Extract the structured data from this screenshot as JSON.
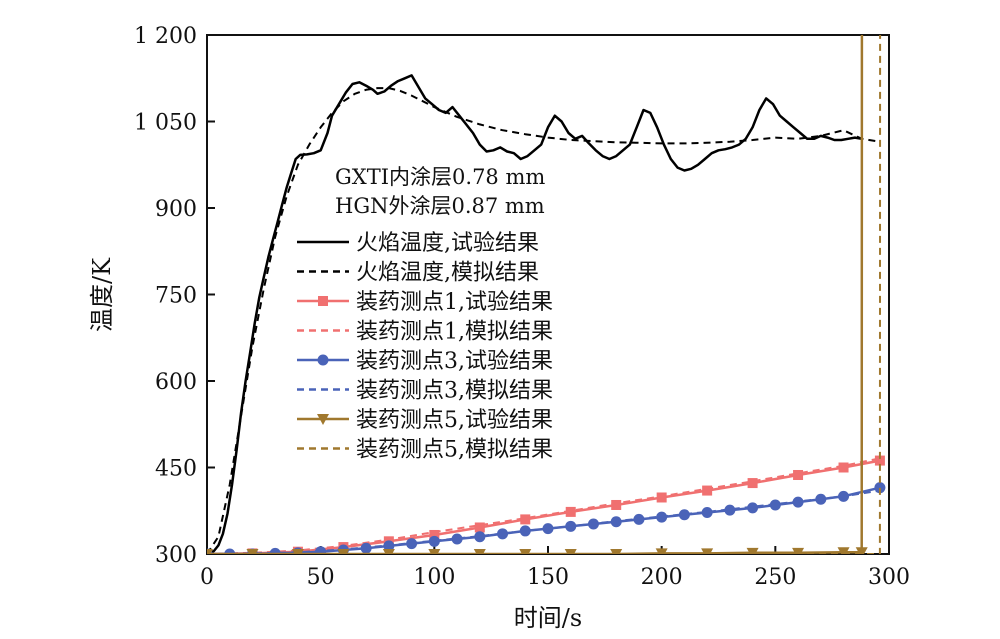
{
  "chart_data": {
    "type": "line",
    "xlabel": "时间/s",
    "ylabel": "温度/K",
    "xlim": [
      0,
      300
    ],
    "ylim": [
      300,
      1200
    ],
    "x_ticks": [
      {
        "value": 0,
        "label": "0"
      },
      {
        "value": 50,
        "label": "50"
      },
      {
        "value": 100,
        "label": "100"
      },
      {
        "value": 150,
        "label": "150"
      },
      {
        "value": 200,
        "label": "200"
      },
      {
        "value": 250,
        "label": "250"
      },
      {
        "value": 300,
        "label": "300"
      }
    ],
    "y_ticks": [
      {
        "value": 300,
        "label": "300"
      },
      {
        "value": 450,
        "label": "450"
      },
      {
        "value": 600,
        "label": "600"
      },
      {
        "value": 750,
        "label": "750"
      },
      {
        "value": 900,
        "label": "900"
      },
      {
        "value": 1050,
        "label": "1 050"
      },
      {
        "value": 1200,
        "label": "1 200"
      }
    ],
    "annotations": [
      "GXTI内涂层0.78 mm",
      "HGN外涂层0.87 mm"
    ],
    "legend_position": "center-left",
    "series": [
      {
        "name": "火焰温度,试验结果",
        "color": "#000000",
        "dash": "solid",
        "marker": "none",
        "x": [
          0,
          3,
          5,
          7,
          9,
          11,
          13,
          15,
          17,
          19,
          21,
          23,
          25,
          27,
          29,
          31,
          33,
          35,
          37,
          39,
          41,
          44,
          47,
          50,
          53,
          55,
          58,
          61,
          64,
          67,
          70,
          73,
          75,
          78,
          81,
          84,
          87,
          90,
          93,
          96,
          99,
          102,
          105,
          108,
          111,
          114,
          117,
          120,
          123,
          126,
          129,
          132,
          135,
          138,
          141,
          144,
          147,
          150,
          153,
          156,
          159,
          162,
          165,
          168,
          171,
          174,
          177,
          180,
          183,
          186,
          189,
          192,
          195,
          198,
          201,
          204,
          207,
          210,
          213,
          216,
          219,
          222,
          225,
          228,
          231,
          234,
          237,
          240,
          243,
          246,
          249,
          252,
          255,
          258,
          261,
          264,
          267,
          270,
          273,
          276,
          279,
          282,
          285,
          288
        ],
        "y": [
          300,
          305,
          315,
          335,
          370,
          420,
          480,
          545,
          600,
          650,
          700,
          745,
          780,
          815,
          845,
          875,
          905,
          935,
          960,
          985,
          992,
          993,
          995,
          1000,
          1030,
          1060,
          1080,
          1100,
          1115,
          1118,
          1112,
          1105,
          1098,
          1102,
          1112,
          1120,
          1125,
          1130,
          1110,
          1090,
          1080,
          1070,
          1065,
          1075,
          1060,
          1045,
          1030,
          1010,
          998,
          1000,
          1005,
          998,
          995,
          985,
          990,
          1000,
          1010,
          1040,
          1060,
          1050,
          1030,
          1020,
          1025,
          1012,
          1000,
          990,
          985,
          990,
          1000,
          1010,
          1040,
          1070,
          1065,
          1040,
          1010,
          985,
          970,
          965,
          968,
          975,
          985,
          995,
          1000,
          1002,
          1005,
          1010,
          1020,
          1040,
          1070,
          1090,
          1080,
          1060,
          1050,
          1040,
          1030,
          1020,
          1020,
          1025,
          1022,
          1018,
          1018,
          1020,
          1022,
          1020
        ]
      },
      {
        "name": "火焰温度,模拟结果",
        "color": "#000000",
        "dash": "dashed",
        "marker": "none",
        "x": [
          0,
          5,
          10,
          15,
          20,
          25,
          30,
          35,
          40,
          45,
          50,
          55,
          60,
          65,
          70,
          75,
          80,
          85,
          90,
          95,
          100,
          110,
          120,
          130,
          140,
          150,
          160,
          170,
          180,
          190,
          200,
          210,
          220,
          230,
          240,
          250,
          260,
          270,
          280,
          288,
          296
        ],
        "y": [
          300,
          330,
          420,
          540,
          660,
          760,
          850,
          920,
          975,
          1010,
          1040,
          1065,
          1085,
          1098,
          1105,
          1108,
          1108,
          1103,
          1095,
          1085,
          1075,
          1058,
          1045,
          1035,
          1028,
          1022,
          1018,
          1016,
          1014,
          1013,
          1012,
          1012,
          1013,
          1015,
          1018,
          1022,
          1020,
          1025,
          1035,
          1020,
          1015
        ]
      },
      {
        "name": "装药测点1,试验结果",
        "color": "#f07070",
        "dash": "solid",
        "marker": "square",
        "x": [
          0,
          20,
          40,
          60,
          80,
          100,
          120,
          140,
          160,
          180,
          200,
          220,
          240,
          260,
          280,
          296
        ],
        "y": [
          300,
          301,
          304,
          312,
          322,
          333,
          346,
          360,
          373,
          385,
          398,
          410,
          423,
          437,
          450,
          462
        ]
      },
      {
        "name": "装药测点1,模拟结果",
        "color": "#f07070",
        "dash": "dashed",
        "marker": "none",
        "x": [
          0,
          20,
          40,
          60,
          80,
          100,
          120,
          140,
          160,
          180,
          200,
          220,
          240,
          260,
          280,
          296
        ],
        "y": [
          300,
          302,
          306,
          314,
          325,
          338,
          350,
          362,
          375,
          388,
          400,
          413,
          426,
          440,
          453,
          466
        ]
      },
      {
        "name": "装药测点3,试验结果",
        "color": "#4a63b8",
        "dash": "solid",
        "marker": "circle",
        "x": [
          0,
          10,
          20,
          30,
          40,
          50,
          60,
          70,
          80,
          90,
          100,
          110,
          120,
          130,
          140,
          150,
          160,
          170,
          180,
          190,
          200,
          210,
          220,
          230,
          240,
          250,
          260,
          270,
          280,
          296
        ],
        "y": [
          300,
          300,
          300,
          301,
          302,
          304,
          307,
          310,
          314,
          318,
          322,
          326,
          330,
          335,
          340,
          344,
          348,
          352,
          356,
          360,
          364,
          368,
          372,
          376,
          380,
          385,
          390,
          395,
          400,
          415
        ]
      },
      {
        "name": "装药测点3,模拟结果",
        "color": "#4a63b8",
        "dash": "dashed",
        "marker": "none",
        "x": [
          0,
          20,
          40,
          60,
          80,
          100,
          120,
          140,
          160,
          180,
          200,
          220,
          240,
          260,
          280,
          296
        ],
        "y": [
          300,
          301,
          303,
          308,
          315,
          323,
          331,
          340,
          348,
          357,
          365,
          373,
          382,
          391,
          400,
          410
        ]
      },
      {
        "name": "装药测点5,试验结果",
        "color": "#a0782e",
        "dash": "solid",
        "marker": "triangle-down",
        "x": [
          0,
          20,
          40,
          60,
          80,
          100,
          120,
          140,
          160,
          180,
          200,
          220,
          240,
          260,
          280,
          288,
          288.1
        ],
        "y": [
          300,
          300,
          300,
          300,
          300,
          300,
          300,
          300,
          300,
          300,
          301,
          301,
          302,
          302,
          303,
          303,
          1200
        ]
      },
      {
        "name": "装药测点5,模拟结果",
        "color": "#a0782e",
        "dash": "dashed",
        "marker": "none",
        "x": [
          0,
          50,
          100,
          150,
          200,
          250,
          296,
          296.1
        ],
        "y": [
          300,
          300,
          300,
          300,
          300,
          300,
          300,
          1200
        ]
      }
    ]
  }
}
